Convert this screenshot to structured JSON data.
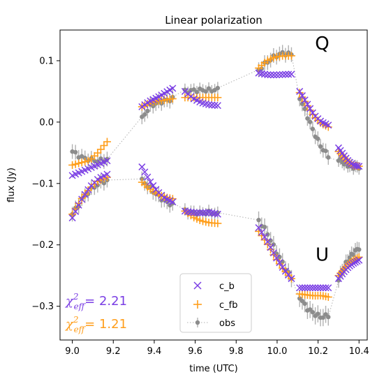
{
  "chart_data": {
    "type": "scatter",
    "title": "Linear polarization",
    "xlabel": "time (UTC)",
    "ylabel": "flux (Jy)",
    "xlim": [
      8.94,
      10.44
    ],
    "ylim": [
      -0.355,
      0.15
    ],
    "xticks": [
      9.0,
      9.2,
      9.4,
      9.6,
      9.8,
      10.0,
      10.2,
      10.4
    ],
    "xtick_labels": [
      "9.0",
      "9.2",
      "9.4",
      "9.6",
      "9.8",
      "10.0",
      "10.2",
      "10.4"
    ],
    "yticks": [
      0.1,
      0.0,
      -0.1,
      -0.2,
      -0.3
    ],
    "ytick_labels": [
      "0.1",
      "0.0",
      "−0.1",
      "−0.2",
      "−0.3"
    ],
    "grid": false,
    "legend_position": "lower-center",
    "colors": {
      "c_b": "#7b3fe4",
      "c_fb": "#ff9e1b",
      "obs": "#8c8c8c",
      "obs_line": "#b0b0b0"
    },
    "series": [
      {
        "name": "c_b",
        "marker": "x"
      },
      {
        "name": "c_fb",
        "marker": "+"
      },
      {
        "name": "obs",
        "marker": "errorbar-dot"
      }
    ],
    "panel_labels": [
      {
        "text": "Q",
        "x": 10.22,
        "y": 0.118
      },
      {
        "text": "U",
        "x": 10.22,
        "y": -0.226
      }
    ],
    "chi2_annotations": [
      {
        "label": "χ",
        "sup": "2",
        "sub": "eff",
        "value": "= 2.21",
        "series": "c_b"
      },
      {
        "label": "χ",
        "sup": "2",
        "sub": "eff",
        "value": "= 1.21",
        "series": "c_fb"
      }
    ],
    "segments": {
      "Q": [
        {
          "x": [
            9.0,
            9.17
          ],
          "obs": [
            -0.048,
            -0.063
          ],
          "c_b": [
            -0.087,
            -0.063
          ],
          "c_fb": [
            -0.07,
            -0.032
          ],
          "err": 0.012
        },
        {
          "x": [
            9.34,
            9.49
          ],
          "obs": [
            0.006,
            0.038
          ],
          "c_b": [
            0.025,
            0.055
          ],
          "c_fb": [
            0.025,
            0.038
          ],
          "err": 0.012
        },
        {
          "x": [
            9.55,
            9.71
          ],
          "obs": [
            0.05,
            0.053
          ],
          "c_b": [
            0.05,
            0.027
          ],
          "c_fb": [
            0.04,
            0.04
          ],
          "err": 0.01
        },
        {
          "x": [
            9.91,
            10.07
          ],
          "obs": [
            0.085,
            0.11
          ],
          "c_b": [
            0.08,
            0.078
          ],
          "c_fb": [
            0.088,
            0.108
          ],
          "err": 0.012
        },
        {
          "x": [
            10.11,
            10.25
          ],
          "obs": [
            0.04,
            -0.055
          ],
          "c_b": [
            0.05,
            -0.005
          ],
          "c_fb": [
            0.048,
            -0.008
          ],
          "err": 0.012
        },
        {
          "x": [
            10.3,
            10.4
          ],
          "obs": [
            -0.06,
            -0.073
          ],
          "c_b": [
            -0.042,
            -0.072
          ],
          "c_fb": [
            -0.048,
            -0.072
          ],
          "err": 0.01
        }
      ],
      "U": [
        {
          "x": [
            9.0,
            9.17
          ],
          "obs": [
            -0.15,
            -0.095
          ],
          "c_b": [
            -0.156,
            -0.085
          ],
          "c_fb": [
            -0.15,
            -0.09
          ],
          "err": 0.012
        },
        {
          "x": [
            9.34,
            9.49
          ],
          "obs": [
            -0.095,
            -0.135
          ],
          "c_b": [
            -0.073,
            -0.13
          ],
          "c_fb": [
            -0.098,
            -0.125
          ],
          "err": 0.012
        },
        {
          "x": [
            9.55,
            9.71
          ],
          "obs": [
            -0.145,
            -0.15
          ],
          "c_b": [
            -0.145,
            -0.15
          ],
          "c_fb": [
            -0.145,
            -0.165
          ],
          "err": 0.01
        },
        {
          "x": [
            9.91,
            10.07
          ],
          "obs": [
            -0.16,
            -0.255
          ],
          "c_b": [
            -0.172,
            -0.255
          ],
          "c_fb": [
            -0.178,
            -0.255
          ],
          "err": 0.014
        },
        {
          "x": [
            10.11,
            10.25
          ],
          "obs": [
            -0.285,
            -0.315
          ],
          "c_b": [
            -0.27,
            -0.27
          ],
          "c_fb": [
            -0.28,
            -0.285
          ],
          "err": 0.014
        },
        {
          "x": [
            10.3,
            10.4
          ],
          "obs": [
            -0.255,
            -0.205
          ],
          "c_b": [
            -0.255,
            -0.225
          ],
          "c_fb": [
            -0.25,
            -0.22
          ],
          "err": 0.012
        }
      ]
    },
    "curve_shapes": {
      "Q": [
        {
          "c_b": [
            0,
            0.25,
            0.5,
            0.75,
            1
          ],
          "c_fb": [
            0,
            0.1,
            0.2,
            0.55,
            1
          ],
          "obs": [
            0,
            0.6,
            0.9,
            1,
            0.85
          ]
        },
        {
          "c_b": [
            0,
            0.3,
            0.5,
            0.75,
            1
          ],
          "c_fb": [
            0,
            0.5,
            0.7,
            0.85,
            1
          ],
          "obs": [
            0,
            0.6,
            0.8,
            0.9,
            1
          ]
        },
        {
          "c_b": [
            0,
            0.5,
            0.8,
            0.95,
            1
          ],
          "c_fb": [
            0,
            0.2,
            0.4,
            0.3,
            0
          ],
          "obs": [
            0,
            0.5,
            0.7,
            0.6,
            1
          ]
        },
        {
          "c_b": [
            0,
            1.4,
            1.6,
            1.2,
            1
          ],
          "c_fb": [
            0,
            0.6,
            0.9,
            1,
            1
          ],
          "obs": [
            0,
            0.5,
            0.9,
            1.1,
            1
          ]
        },
        {
          "c_b": [
            0,
            0.35,
            0.7,
            0.9,
            1
          ],
          "c_fb": [
            0,
            0.35,
            0.7,
            0.9,
            1
          ],
          "obs": [
            0,
            0.3,
            0.6,
            0.85,
            1
          ]
        },
        {
          "c_b": [
            0,
            0.4,
            0.75,
            0.95,
            1
          ],
          "c_fb": [
            0,
            0.4,
            0.75,
            0.95,
            1
          ],
          "obs": [
            0,
            0.5,
            0.85,
            1,
            1
          ]
        }
      ],
      "U": [
        {
          "c_b": [
            0,
            0.4,
            0.7,
            0.9,
            1
          ],
          "c_fb": [
            0,
            0.4,
            0.7,
            0.9,
            1
          ],
          "obs": [
            0,
            0.4,
            0.7,
            0.9,
            1
          ]
        },
        {
          "c_b": [
            0,
            0.4,
            0.7,
            0.9,
            1
          ],
          "c_fb": [
            0,
            0.4,
            0.7,
            0.9,
            1
          ],
          "obs": [
            0,
            0.3,
            0.6,
            0.85,
            1
          ]
        },
        {
          "c_b": [
            0,
            0.5,
            0.6,
            0.4,
            1
          ],
          "c_fb": [
            0,
            0.5,
            0.8,
            0.95,
            1
          ],
          "obs": [
            0,
            0.5,
            0.7,
            0.5,
            1
          ]
        },
        {
          "c_b": [
            0,
            0.25,
            0.55,
            0.8,
            1
          ],
          "c_fb": [
            0,
            0.25,
            0.55,
            0.8,
            1
          ],
          "obs": [
            0,
            0.2,
            0.5,
            0.75,
            1
          ]
        },
        {
          "c_b": [
            0,
            0.5,
            0.6,
            0.3,
            1
          ],
          "c_fb": [
            0,
            0.3,
            0.6,
            0.5,
            1
          ],
          "obs": [
            0,
            0.6,
            0.9,
            1.1,
            1
          ]
        },
        {
          "c_b": [
            0,
            0.35,
            0.65,
            0.85,
            1
          ],
          "c_fb": [
            0,
            0.35,
            0.65,
            0.85,
            1
          ],
          "obs": [
            0,
            0.35,
            0.65,
            0.85,
            1
          ]
        }
      ]
    }
  }
}
